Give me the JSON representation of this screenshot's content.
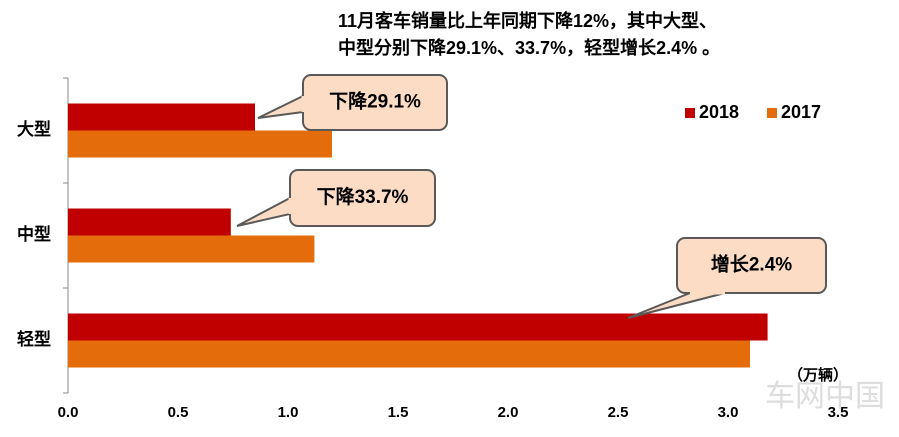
{
  "chart_data": {
    "type": "bar",
    "orientation": "horizontal",
    "title": [
      "11月客车销量比上年同期下降12%，其中大型、",
      "中型分别下降29.1%、33.7%，轻型增长2.4% 。"
    ],
    "unit": "（万辆）",
    "categories": [
      "大型",
      "中型",
      "轻型"
    ],
    "series": [
      {
        "name": "2018",
        "color": "#c00000",
        "values": [
          0.85,
          0.74,
          3.18
        ]
      },
      {
        "name": "2017",
        "color": "#e46c0a",
        "values": [
          1.2,
          1.12,
          3.1
        ]
      }
    ],
    "annotations": [
      "下降29.1%",
      "下降33.7%",
      "增长2.4%"
    ],
    "watermark": "车网中国",
    "xlim": [
      0,
      3.5
    ],
    "xticks": [
      {
        "value": 0,
        "label": "0.0"
      },
      0.5,
      {
        "value": 1,
        "label": "1.0"
      },
      1.5,
      {
        "value": 2,
        "label": "2.0"
      },
      2.5,
      {
        "value": 3,
        "label": "3.0"
      },
      3.5
    ],
    "legend": "top-right",
    "grid": false
  }
}
